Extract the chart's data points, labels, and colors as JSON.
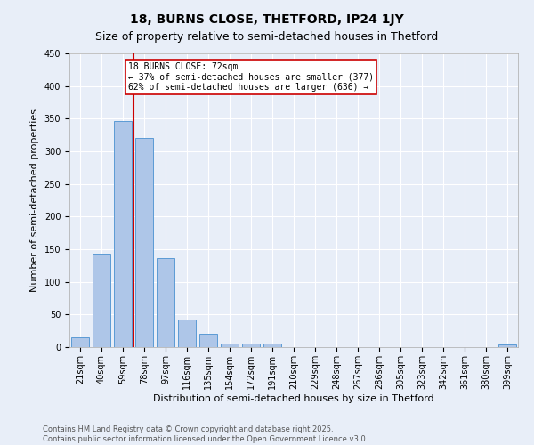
{
  "title": "18, BURNS CLOSE, THETFORD, IP24 1JY",
  "subtitle": "Size of property relative to semi-detached houses in Thetford",
  "xlabel": "Distribution of semi-detached houses by size in Thetford",
  "ylabel": "Number of semi-detached properties",
  "bar_labels": [
    "21sqm",
    "40sqm",
    "59sqm",
    "78sqm",
    "97sqm",
    "116sqm",
    "135sqm",
    "154sqm",
    "172sqm",
    "191sqm",
    "210sqm",
    "229sqm",
    "248sqm",
    "267sqm",
    "286sqm",
    "305sqm",
    "323sqm",
    "342sqm",
    "361sqm",
    "380sqm",
    "399sqm"
  ],
  "bar_values": [
    15,
    143,
    347,
    320,
    136,
    42,
    20,
    6,
    6,
    5,
    0,
    0,
    0,
    0,
    0,
    0,
    0,
    0,
    0,
    0,
    4
  ],
  "bar_color": "#aec6e8",
  "bar_edge_color": "#5b9bd5",
  "vline_index": 3,
  "vline_color": "#cc0000",
  "ylim": [
    0,
    450
  ],
  "yticks": [
    0,
    50,
    100,
    150,
    200,
    250,
    300,
    350,
    400,
    450
  ],
  "annotation_title": "18 BURNS CLOSE: 72sqm",
  "annotation_line1": "← 37% of semi-detached houses are smaller (377)",
  "annotation_line2": "62% of semi-detached houses are larger (636) →",
  "footer_line1": "Contains HM Land Registry data © Crown copyright and database right 2025.",
  "footer_line2": "Contains public sector information licensed under the Open Government Licence v3.0.",
  "background_color": "#e8eef8",
  "grid_color": "#ffffff",
  "title_fontsize": 10,
  "subtitle_fontsize": 9,
  "axis_label_fontsize": 8,
  "tick_fontsize": 7,
  "annotation_fontsize": 7,
  "footer_fontsize": 6,
  "annotation_box_edge_color": "#cc0000",
  "annotation_box_face_color": "#ffffff"
}
